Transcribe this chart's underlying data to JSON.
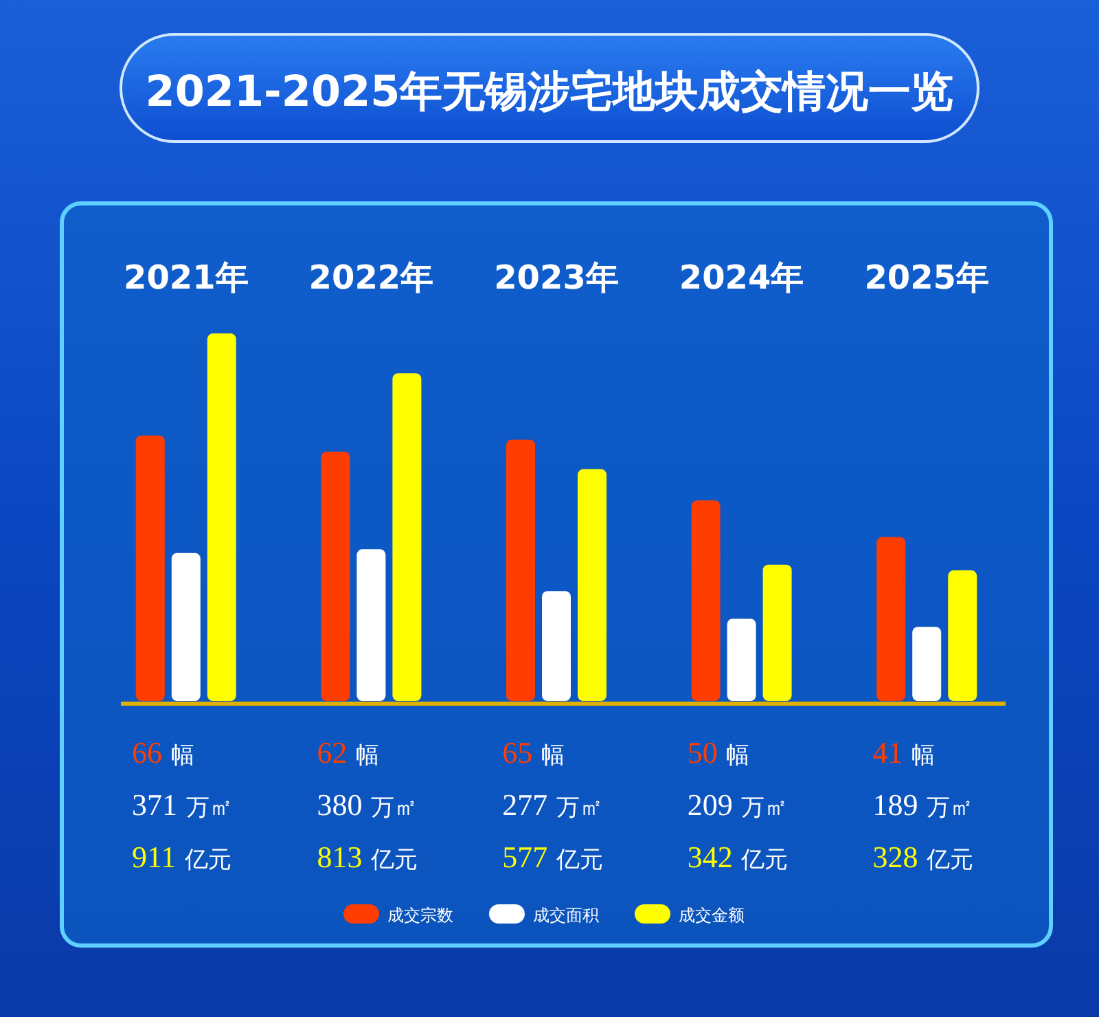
{
  "chart_data": {
    "type": "bar",
    "title": "2021-2025年无锡涉宅地块成交情况一览",
    "categories": [
      "2021年",
      "2022年",
      "2023年",
      "2024年",
      "2025年"
    ],
    "series": [
      {
        "name": "成交宗数",
        "color": "#ff3d00",
        "values": [
          66,
          62,
          65,
          50,
          41
        ],
        "value_labels": [
          "66 幅",
          "62 幅",
          "65 幅",
          "50 幅",
          "41 幅"
        ]
      },
      {
        "name": "成交面积",
        "color": "#ffffff",
        "values": [
          371,
          380,
          277,
          209,
          189
        ],
        "value_labels": [
          "371 万㎡",
          "380 万㎡",
          "277 万㎡",
          "209 万㎡",
          "189 万㎡"
        ],
        "axis": "y2"
      },
      {
        "name": "成交金额",
        "color": "#ffff00",
        "values": [
          911,
          813,
          577,
          342,
          328
        ],
        "value_labels": [
          "911 亿元",
          "813 亿元",
          "577 亿元",
          "342 亿元",
          "328 亿元"
        ],
        "axis": "y2"
      }
    ],
    "ylim": [
      0,
      92
    ],
    "y2lim": [
      0,
      920
    ],
    "tick_labels": "x",
    "legend": "bottom"
  }
}
